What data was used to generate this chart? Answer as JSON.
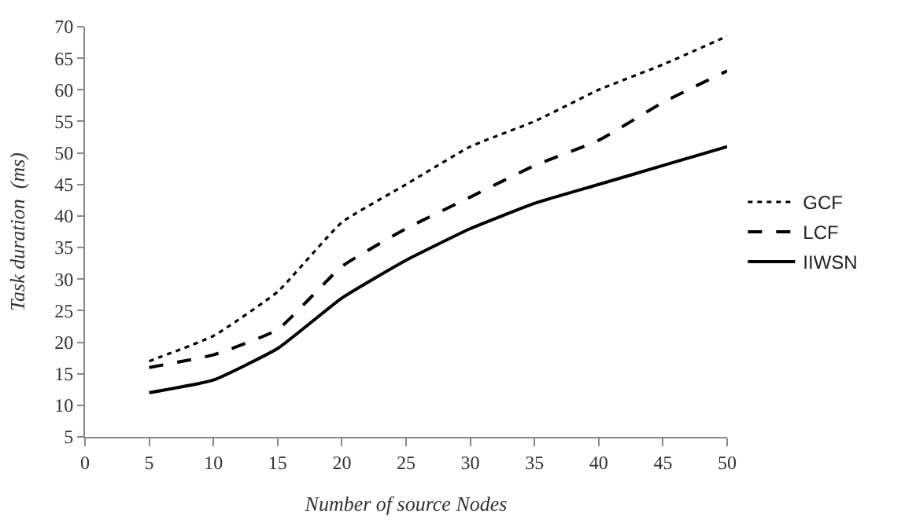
{
  "chart_data": {
    "type": "line",
    "xlabel": "Number of source Nodes",
    "ylabel": "Task duration  (ms)",
    "x": [
      5,
      10,
      15,
      20,
      25,
      30,
      35,
      40,
      45,
      50
    ],
    "series": [
      {
        "name": "GCF",
        "color": "#000000",
        "line_style": "dotted",
        "values": [
          17,
          21,
          28,
          39,
          45,
          51,
          55,
          60,
          64,
          68.5
        ]
      },
      {
        "name": "LCF",
        "color": "#000000",
        "line_style": "dashed",
        "values": [
          16,
          18,
          22,
          32,
          38,
          43,
          48,
          52,
          58,
          63
        ]
      },
      {
        "name": "IIWSN",
        "color": "#000000",
        "line_style": "solid",
        "values": [
          12,
          14,
          19,
          27,
          33,
          38,
          42,
          45,
          48,
          51
        ]
      }
    ],
    "xlim": [
      0,
      50
    ],
    "xticks": [
      0,
      5,
      10,
      15,
      20,
      25,
      30,
      35,
      40,
      45,
      50
    ],
    "ylim": [
      5,
      70
    ],
    "yticks": [
      5,
      10,
      15,
      20,
      25,
      30,
      35,
      40,
      45,
      50,
      55,
      60,
      65,
      70
    ],
    "legend": "right",
    "marker": "none"
  }
}
